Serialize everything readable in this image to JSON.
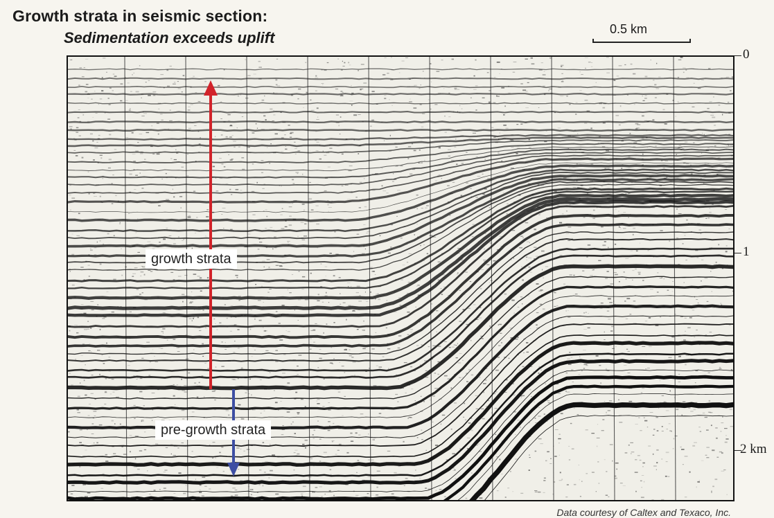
{
  "header": {
    "title": "Growth strata in seismic section:",
    "subtitle": "Sedimentation exceeds uplift"
  },
  "scale_bar": {
    "label": "0.5 km"
  },
  "depth_axis": {
    "ticks": [
      {
        "label": "0"
      },
      {
        "label": "1"
      },
      {
        "label": "2 km"
      }
    ]
  },
  "annotations": {
    "growth_strata": "growth strata",
    "pre_growth_strata": "pre-growth strata"
  },
  "colors": {
    "growth_arrow": "#d2232a",
    "pre_growth_arrow": "#3d4ea3",
    "reflector": "#111111",
    "background": "#f0efe8"
  },
  "credit": "Data courtesy of Caltex and Texaco, Inc."
}
